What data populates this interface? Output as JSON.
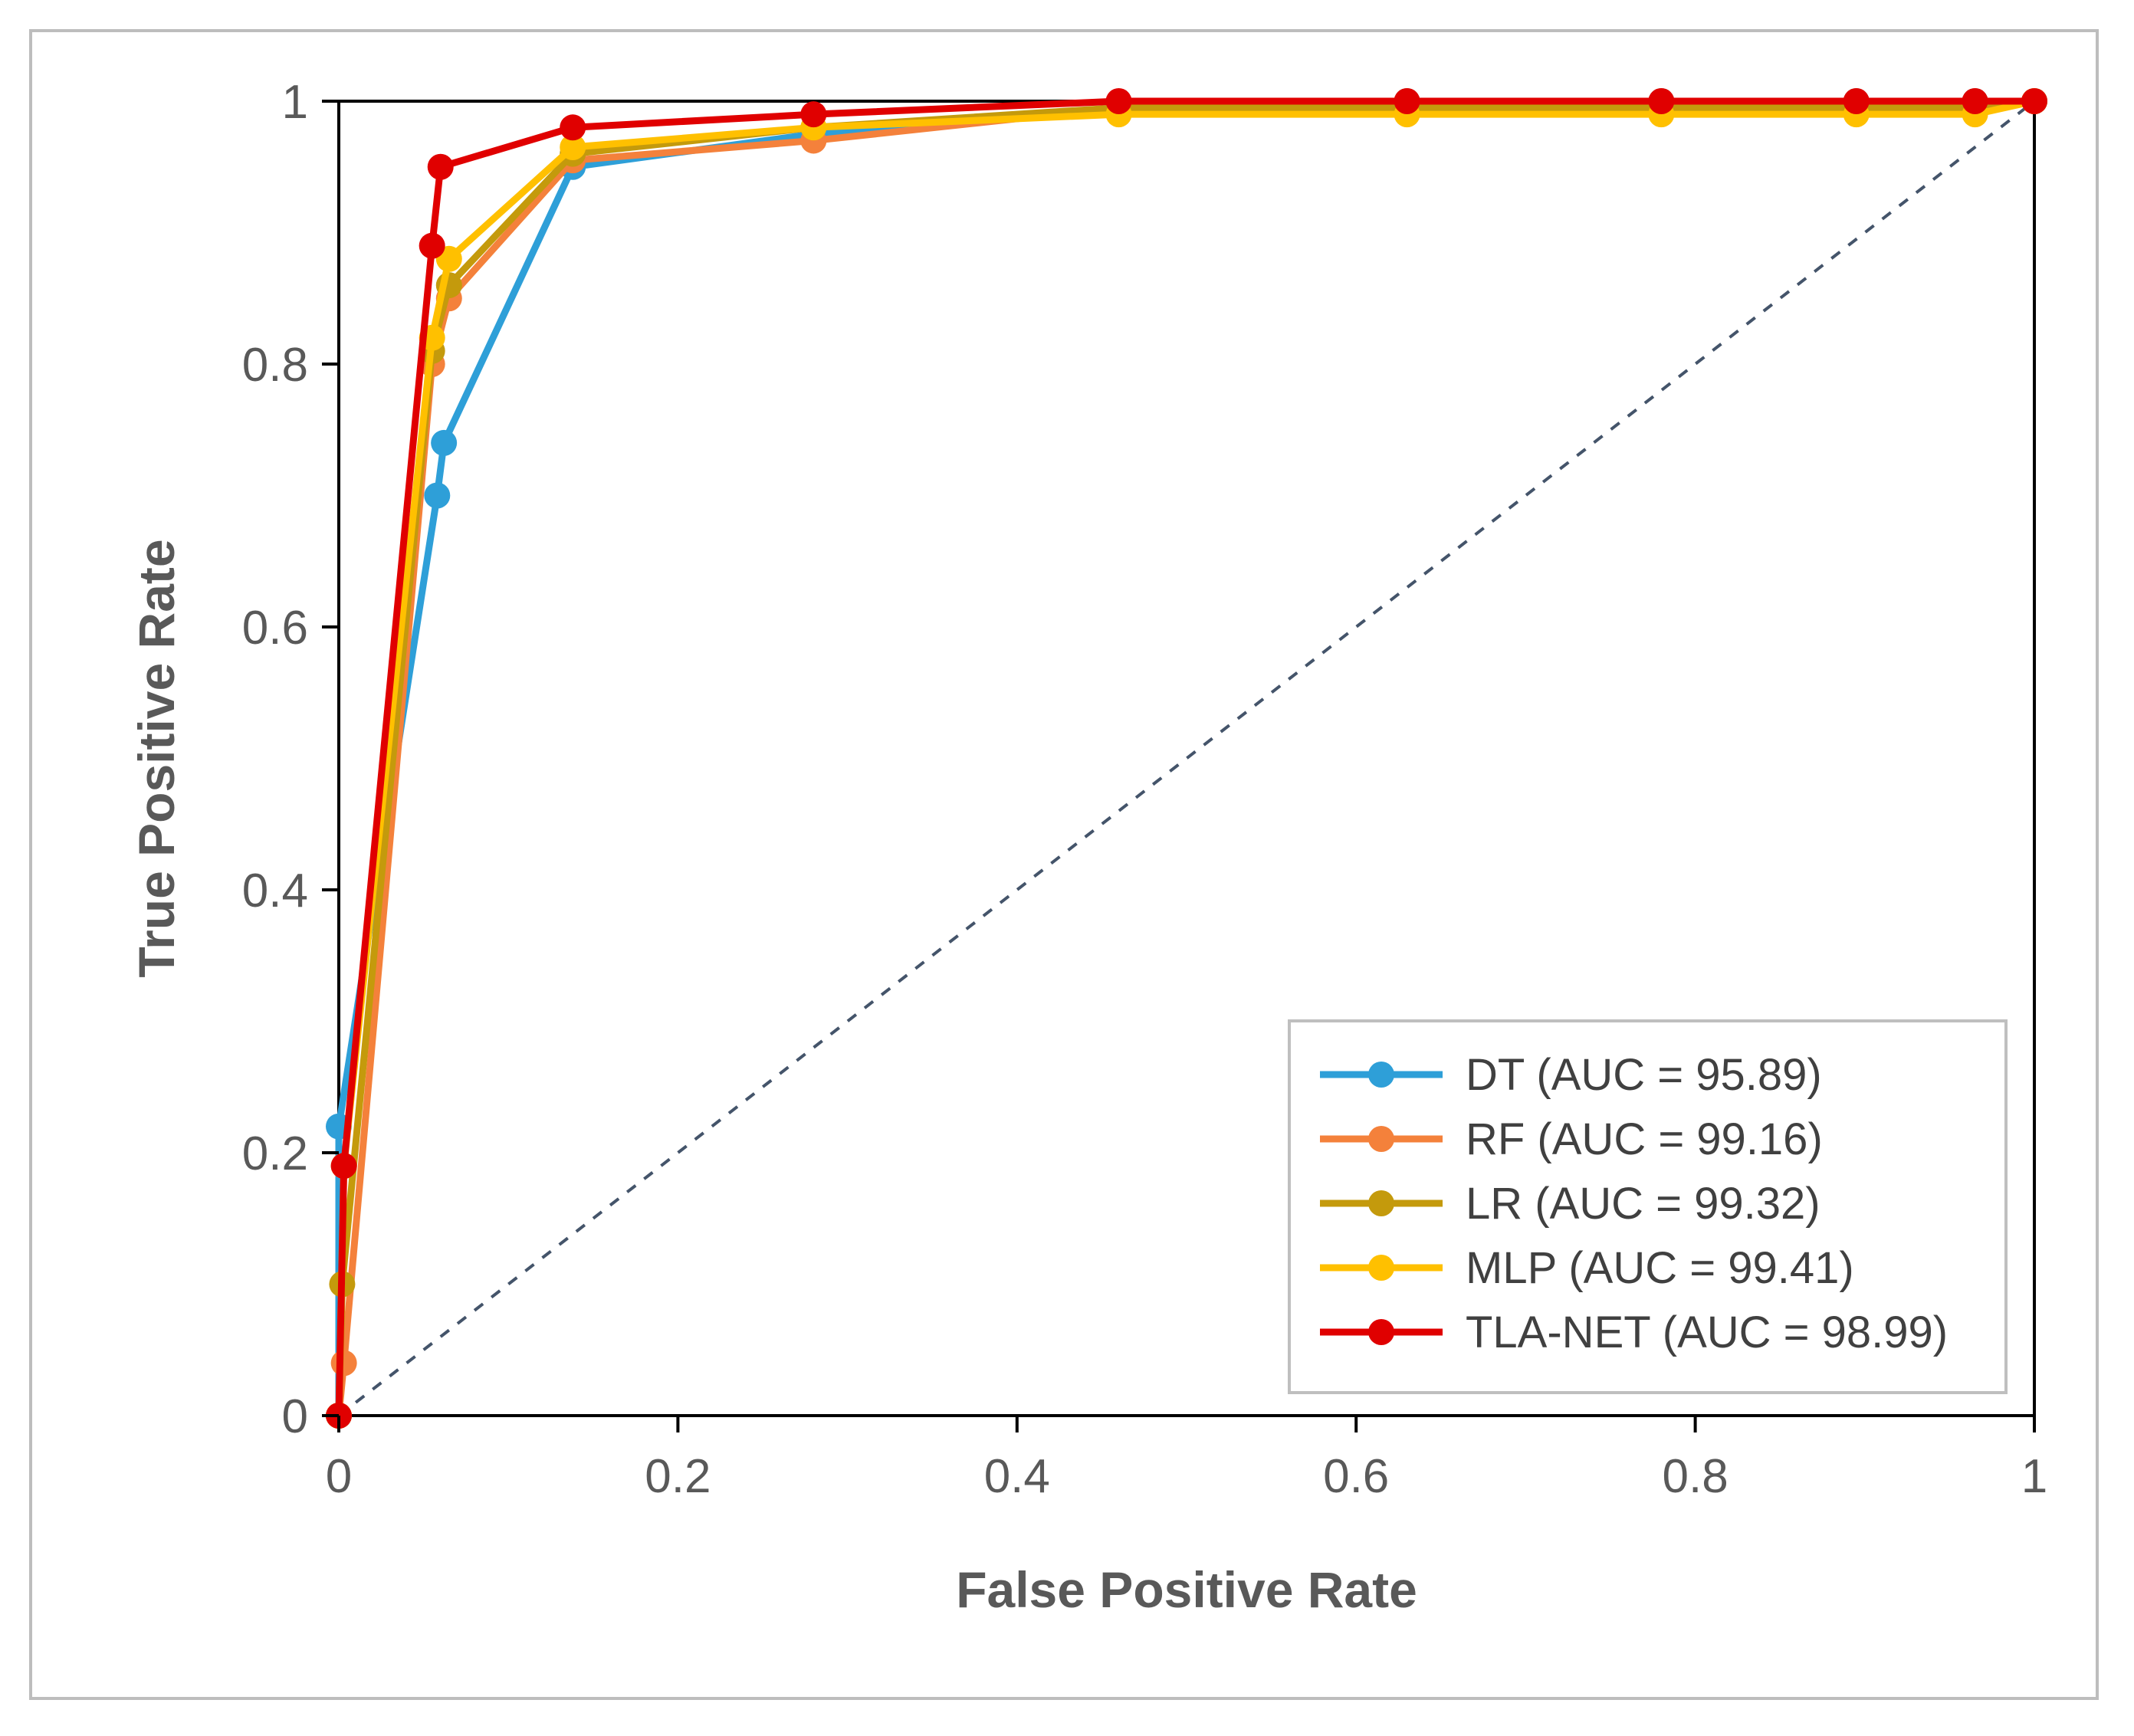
{
  "chart_data": {
    "type": "line",
    "title": "",
    "xlabel": "False Positive Rate",
    "ylabel": "True Positive Rate",
    "xlim": [
      0,
      1
    ],
    "ylim": [
      0,
      1
    ],
    "x_ticks": [
      "0",
      "0.2",
      "0.4",
      "0.6",
      "0.8",
      "1"
    ],
    "y_ticks": [
      "0",
      "0.2",
      "0.4",
      "0.6",
      "0.8",
      "1"
    ],
    "grid": false,
    "legend_position": "bottom-right",
    "reference_line": {
      "name": "chance",
      "x": [
        0,
        1
      ],
      "y": [
        0,
        1
      ],
      "color": "#44546a",
      "style": "dashed"
    },
    "series": [
      {
        "name": "DT",
        "label": "DT (AUC = 95.89)",
        "color": "#2e9fd8",
        "x": [
          0,
          0.0,
          0.058,
          0.062,
          0.138,
          0.28,
          0.46,
          0.63,
          0.78,
          0.895,
          0.965,
          1.0
        ],
        "y": [
          0,
          0.22,
          0.7,
          0.74,
          0.95,
          0.975,
          0.995,
          1.0,
          1.0,
          1.0,
          1.0,
          1.0
        ]
      },
      {
        "name": "RF",
        "label": "RF (AUC = 99.16)",
        "color": "#f4813b",
        "x": [
          0,
          0.003,
          0.055,
          0.065,
          0.138,
          0.28,
          0.46,
          0.63,
          0.78,
          0.895,
          0.965,
          1.0
        ],
        "y": [
          0,
          0.04,
          0.8,
          0.85,
          0.955,
          0.97,
          0.995,
          1.0,
          1.0,
          1.0,
          1.0,
          1.0
        ]
      },
      {
        "name": "LR",
        "label": "LR (AUC = 99.32)",
        "color": "#c49a0c",
        "x": [
          0,
          0.002,
          0.055,
          0.065,
          0.138,
          0.28,
          0.46,
          0.63,
          0.78,
          0.895,
          0.965,
          1.0
        ],
        "y": [
          0,
          0.1,
          0.81,
          0.86,
          0.96,
          0.98,
          0.995,
          0.995,
          0.995,
          0.995,
          0.995,
          1.0
        ]
      },
      {
        "name": "MLP",
        "label": "MLP (AUC = 99.41)",
        "color": "#ffc000",
        "x": [
          0,
          0.003,
          0.055,
          0.065,
          0.138,
          0.28,
          0.46,
          0.63,
          0.78,
          0.895,
          0.965,
          1.0
        ],
        "y": [
          0,
          0.19,
          0.82,
          0.88,
          0.965,
          0.98,
          0.99,
          0.99,
          0.99,
          0.99,
          0.99,
          1.0
        ]
      },
      {
        "name": "TLA-NET",
        "label": "TLA-NET (AUC = 98.99)",
        "color": "#e00000",
        "x": [
          0,
          0.003,
          0.055,
          0.06,
          0.138,
          0.28,
          0.46,
          0.63,
          0.78,
          0.895,
          0.965,
          1.0
        ],
        "y": [
          0,
          0.19,
          0.89,
          0.95,
          0.98,
          0.99,
          1.0,
          1.0,
          1.0,
          1.0,
          1.0,
          1.0
        ]
      }
    ]
  }
}
